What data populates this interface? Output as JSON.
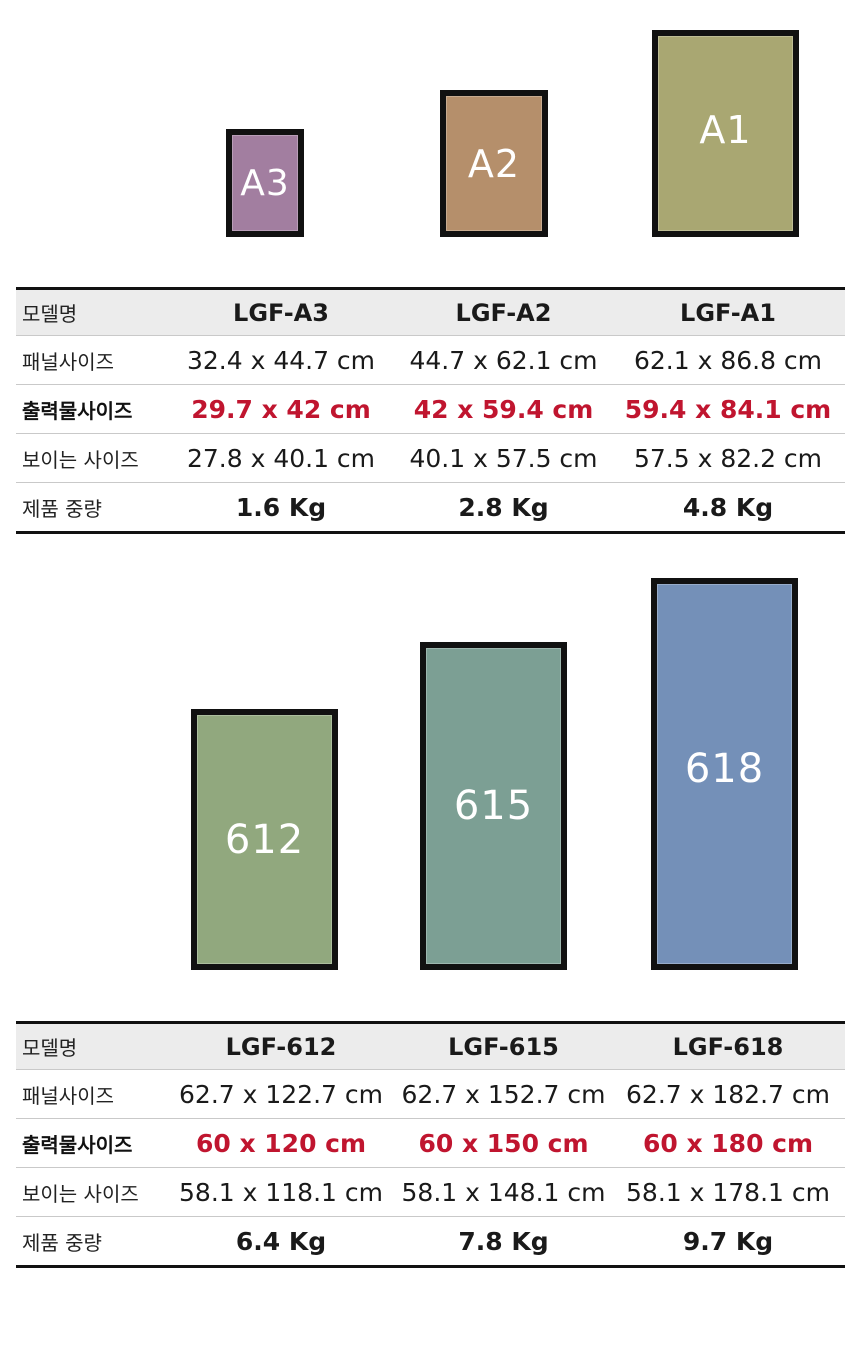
{
  "section_a": {
    "frames": [
      {
        "label": "A3",
        "color": "#a27ea0"
      },
      {
        "label": "A2",
        "color": "#b58f6b"
      },
      {
        "label": "A1",
        "color": "#a9a772"
      }
    ],
    "table": {
      "row_labels": {
        "model": "모델명",
        "panel": "패널사이즈",
        "output": "출력물사이즈",
        "visible": "보이는 사이즈",
        "weight": "제품 중량"
      },
      "models": [
        "LGF-A3",
        "LGF-A2",
        "LGF-A1"
      ],
      "panel": [
        "32.4 x 44.7 cm",
        "44.7 x 62.1 cm",
        "62.1 x 86.8 cm"
      ],
      "output": [
        "29.7 x 42 cm",
        "42 x 59.4 cm",
        "59.4 x 84.1 cm"
      ],
      "visible": [
        "27.8 x 40.1 cm",
        "40.1 x 57.5 cm",
        "57.5 x 82.2 cm"
      ],
      "weight": [
        "1.6 Kg",
        "2.8 Kg",
        "4.8 Kg"
      ]
    }
  },
  "section_b": {
    "frames": [
      {
        "label": "612",
        "color": "#91a87e"
      },
      {
        "label": "615",
        "color": "#7c9f94"
      },
      {
        "label": "618",
        "color": "#7490b8"
      }
    ],
    "table": {
      "row_labels": {
        "model": "모델명",
        "panel": "패널사이즈",
        "output": "출력물사이즈",
        "visible": "보이는 사이즈",
        "weight": "제품 중량"
      },
      "models": [
        "LGF-612",
        "LGF-615",
        "LGF-618"
      ],
      "panel": [
        "62.7 x 122.7 cm",
        "62.7 x 152.7 cm",
        "62.7 x 182.7 cm"
      ],
      "output": [
        "60 x 120 cm",
        "60 x 150 cm",
        "60 x 180 cm"
      ],
      "visible": [
        "58.1 x 118.1 cm",
        "58.1 x 148.1 cm",
        "58.1 x 178.1 cm"
      ],
      "weight": [
        "6.4 Kg",
        "7.8 Kg",
        "9.7 Kg"
      ]
    }
  }
}
